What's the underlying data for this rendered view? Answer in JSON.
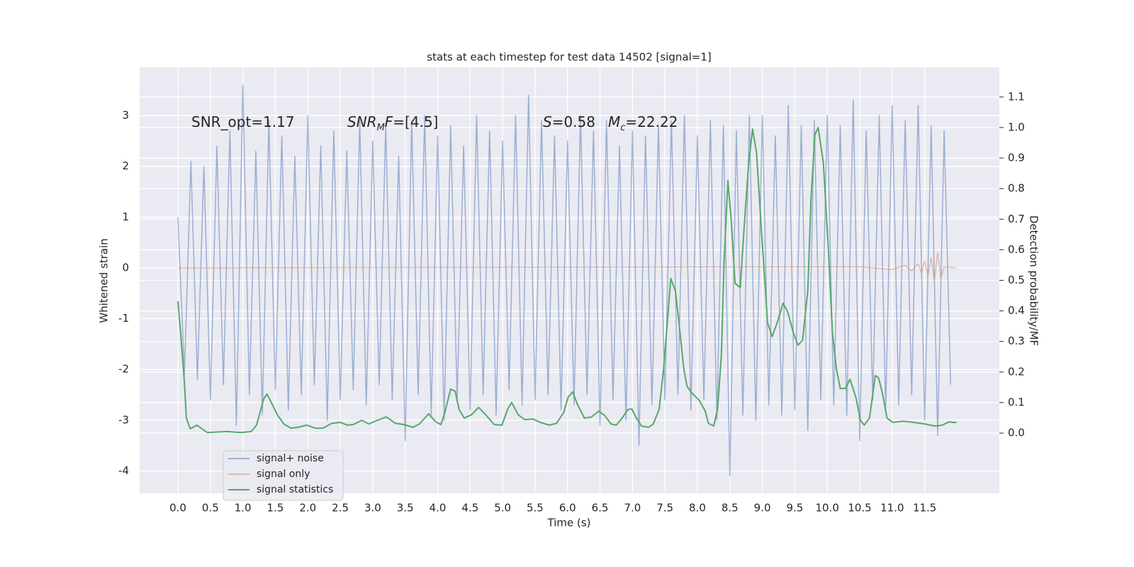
{
  "chart_data": {
    "type": "line",
    "title": "stats at each timestep for test data 14502 [signal=1]",
    "x_label": "Time (s)",
    "y_label": "Whitened strain",
    "y2_label": "Detection probability/MF",
    "xlim": [
      -0.59,
      12.65
    ],
    "ylim": [
      -4.44,
      3.95
    ],
    "y2lim": [
      -0.197,
      1.197
    ],
    "xticks": [
      {
        "value": 0,
        "label": "0.0"
      },
      0.5,
      {
        "value": 1,
        "label": "1.0"
      },
      1.5,
      {
        "value": 2,
        "label": "2.0"
      },
      2.5,
      {
        "value": 3,
        "label": "3.0"
      },
      3.5,
      {
        "value": 4,
        "label": "4.0"
      },
      4.5,
      {
        "value": 5,
        "label": "5.0"
      },
      5.5,
      {
        "value": 6,
        "label": "6.0"
      },
      6.5,
      {
        "value": 7,
        "label": "7.0"
      },
      7.5,
      {
        "value": 8,
        "label": "8.0"
      },
      8.5,
      {
        "value": 9,
        "label": "9.0"
      },
      9.5,
      {
        "value": 10,
        "label": "10.0"
      },
      10.5,
      {
        "value": 11,
        "label": "11.0"
      },
      11.5
    ],
    "yticks": [
      -4,
      -3,
      -2,
      -1,
      0,
      1,
      2,
      3
    ],
    "y2ticks": [
      {
        "value": 0,
        "label": "0.0"
      },
      0.1,
      0.2,
      0.3,
      0.4,
      0.5,
      0.6,
      0.7,
      0.8,
      0.9,
      {
        "value": 1,
        "label": "1.0"
      },
      1.1
    ],
    "grid": true,
    "legend": "lower left",
    "annotations": [
      {
        "segments": [
          {
            "text": "SNR_opt=1.17"
          }
        ]
      },
      {
        "segments": [
          {
            "text": "SNR",
            "italic": true
          },
          {
            "text": "M",
            "italic": true,
            "sub": true
          },
          {
            "text": "F",
            "italic": true
          },
          {
            "text": "=[4.5]"
          }
        ]
      },
      {
        "segments": [
          {
            "text": "S",
            "italic": true
          },
          {
            "text": "=0.58"
          }
        ]
      },
      {
        "segments": [
          {
            "text": "M",
            "italic": true
          },
          {
            "text": "c",
            "italic": true,
            "sub": true
          },
          {
            "text": "=22.22"
          }
        ]
      }
    ],
    "series": [
      {
        "name": "signal+ noise",
        "color": "#4c72b0",
        "opacity": 0.5,
        "x": [
          0,
          0.1,
          0.2,
          0.3,
          0.4,
          0.5,
          0.6,
          0.7,
          0.8,
          0.9,
          1.0,
          1.1,
          1.2,
          1.3,
          1.4,
          1.5,
          1.6,
          1.7,
          1.8,
          1.9,
          2.0,
          2.1,
          2.2,
          2.3,
          2.4,
          2.5,
          2.6,
          2.7,
          2.8,
          2.9,
          3.0,
          3.1,
          3.2,
          3.3,
          3.4,
          3.5,
          3.6,
          3.7,
          3.8,
          3.9,
          4.0,
          4.1,
          4.2,
          4.3,
          4.4,
          4.5,
          4.6,
          4.7,
          4.8,
          4.9,
          5.0,
          5.1,
          5.2,
          5.3,
          5.4,
          5.5,
          5.6,
          5.7,
          5.8,
          5.9,
          6.0,
          6.1,
          6.2,
          6.3,
          6.4,
          6.5,
          6.6,
          6.7,
          6.8,
          6.9,
          7.0,
          7.1,
          7.2,
          7.3,
          7.4,
          7.5,
          7.6,
          7.7,
          7.8,
          7.9,
          8.0,
          8.1,
          8.2,
          8.3,
          8.4,
          8.5,
          8.6,
          8.7,
          8.8,
          8.9,
          9.0,
          9.1,
          9.2,
          9.3,
          9.4,
          9.5,
          9.6,
          9.7,
          9.8,
          9.9,
          10.0,
          10.1,
          10.2,
          10.3,
          10.4,
          10.5,
          10.6,
          10.7,
          10.8,
          10.9,
          11.0,
          11.1,
          11.2,
          11.3,
          11.4,
          11.5,
          11.6,
          11.7,
          11.8,
          11.9
        ],
        "values": [
          1.0,
          -2.1,
          2.1,
          -2.2,
          2.0,
          -2.6,
          2.4,
          -2.3,
          2.7,
          -3.1,
          3.6,
          -2.5,
          2.3,
          -2.9,
          2.9,
          -2.4,
          2.6,
          -2.8,
          2.2,
          -2.5,
          3.0,
          -2.3,
          2.4,
          -3.0,
          2.7,
          -2.6,
          2.3,
          -2.4,
          2.9,
          -2.7,
          2.5,
          -2.3,
          2.8,
          -2.6,
          2.2,
          -3.4,
          2.9,
          -2.5,
          3.0,
          -2.9,
          2.6,
          -3.0,
          2.8,
          -2.6,
          2.4,
          -2.8,
          3.0,
          -2.5,
          2.7,
          -2.9,
          2.5,
          -2.4,
          3.0,
          -2.7,
          3.4,
          -2.6,
          2.9,
          -2.5,
          2.6,
          -2.8,
          2.5,
          -2.7,
          3.0,
          -2.5,
          2.7,
          -3.1,
          2.9,
          -2.6,
          2.4,
          -3.0,
          2.7,
          -3.5,
          2.6,
          -2.7,
          2.8,
          -2.6,
          2.9,
          -2.5,
          3.0,
          -2.8,
          2.6,
          -2.6,
          2.9,
          -3.0,
          2.8,
          -4.1,
          2.7,
          -2.9,
          3.0,
          -3.0,
          3.0,
          -2.7,
          2.6,
          -2.9,
          3.2,
          -2.8,
          2.8,
          -3.2,
          2.9,
          -2.6,
          3.0,
          -2.7,
          2.8,
          -2.9,
          3.3,
          -3.4,
          2.7,
          -2.6,
          3.0,
          -2.8,
          3.2,
          -2.7,
          2.9,
          -2.5,
          3.2,
          -3.0,
          2.8,
          -3.3,
          2.7,
          -2.3
        ]
      },
      {
        "name": "signal only",
        "color": "#dd8452",
        "opacity": 0.5,
        "x": [
          0,
          10.5,
          11.0,
          11.2,
          11.3,
          11.4,
          11.45,
          11.5,
          11.55,
          11.6,
          11.65,
          11.7,
          11.75,
          11.8,
          11.99
        ],
        "values": [
          0,
          0.02,
          -0.03,
          0.05,
          -0.06,
          0.08,
          -0.1,
          0.12,
          -0.15,
          0.2,
          -0.25,
          0.3,
          -0.2,
          0.02,
          0
        ]
      },
      {
        "name": "signal statistics",
        "color": "#55a868",
        "opacity": 1,
        "axis": "y2",
        "x": [
          0,
          0.05,
          0.1,
          0.13,
          0.19,
          0.29,
          0.45,
          0.75,
          0.97,
          1.13,
          1.21,
          1.27,
          1.32,
          1.37,
          1.45,
          1.53,
          1.63,
          1.74,
          1.85,
          1.98,
          2.12,
          2.23,
          2.37,
          2.5,
          2.61,
          2.7,
          2.83,
          2.94,
          3.04,
          3.21,
          3.35,
          3.48,
          3.62,
          3.72,
          3.86,
          3.97,
          4.05,
          4.11,
          4.2,
          4.27,
          4.33,
          4.41,
          4.52,
          4.63,
          4.74,
          4.87,
          4.99,
          5.08,
          5.14,
          5.24,
          5.34,
          5.47,
          5.58,
          5.72,
          5.83,
          5.94,
          6.01,
          6.08,
          6.15,
          6.26,
          6.37,
          6.48,
          6.57,
          6.67,
          6.75,
          6.84,
          6.93,
          6.99,
          7.06,
          7.14,
          7.25,
          7.32,
          7.41,
          7.48,
          7.55,
          7.59,
          7.66,
          7.71,
          7.79,
          7.84,
          7.92,
          8.03,
          8.12,
          8.17,
          8.25,
          8.31,
          8.37,
          8.41,
          8.47,
          8.52,
          8.58,
          8.66,
          8.72,
          8.79,
          8.85,
          8.91,
          8.99,
          9.08,
          9.15,
          9.23,
          9.32,
          9.39,
          9.48,
          9.55,
          9.62,
          9.7,
          9.75,
          9.81,
          9.86,
          9.94,
          10.01,
          10.08,
          10.14,
          10.2,
          10.28,
          10.35,
          10.44,
          10.51,
          10.57,
          10.65,
          10.74,
          10.79,
          10.85,
          10.92,
          11.01,
          11.17,
          11.34,
          11.5,
          11.66,
          11.77,
          11.88,
          11.94,
          11.99
        ],
        "values": [
          0.432,
          0.304,
          0.165,
          0.049,
          0.014,
          0.026,
          0.002,
          0.005,
          0.002,
          0.005,
          0.026,
          0.072,
          0.111,
          0.128,
          0.095,
          0.06,
          0.03,
          0.016,
          0.019,
          0.026,
          0.016,
          0.016,
          0.032,
          0.035,
          0.026,
          0.028,
          0.042,
          0.03,
          0.039,
          0.053,
          0.032,
          0.028,
          0.019,
          0.03,
          0.063,
          0.037,
          0.028,
          0.067,
          0.144,
          0.137,
          0.077,
          0.049,
          0.06,
          0.084,
          0.06,
          0.028,
          0.026,
          0.079,
          0.1,
          0.06,
          0.044,
          0.046,
          0.035,
          0.026,
          0.032,
          0.067,
          0.118,
          0.135,
          0.095,
          0.049,
          0.053,
          0.072,
          0.058,
          0.03,
          0.026,
          0.049,
          0.077,
          0.079,
          0.049,
          0.023,
          0.019,
          0.03,
          0.077,
          0.211,
          0.397,
          0.506,
          0.466,
          0.374,
          0.211,
          0.153,
          0.13,
          0.107,
          0.072,
          0.032,
          0.023,
          0.077,
          0.258,
          0.559,
          0.826,
          0.698,
          0.49,
          0.476,
          0.675,
          0.884,
          0.995,
          0.919,
          0.652,
          0.362,
          0.316,
          0.362,
          0.425,
          0.397,
          0.327,
          0.288,
          0.304,
          0.466,
          0.768,
          0.977,
          1.0,
          0.884,
          0.629,
          0.327,
          0.211,
          0.146,
          0.146,
          0.176,
          0.118,
          0.042,
          0.026,
          0.049,
          0.188,
          0.181,
          0.13,
          0.049,
          0.035,
          0.039,
          0.035,
          0.03,
          0.023,
          0.026,
          0.037,
          0.035,
          0.035
        ]
      }
    ]
  }
}
